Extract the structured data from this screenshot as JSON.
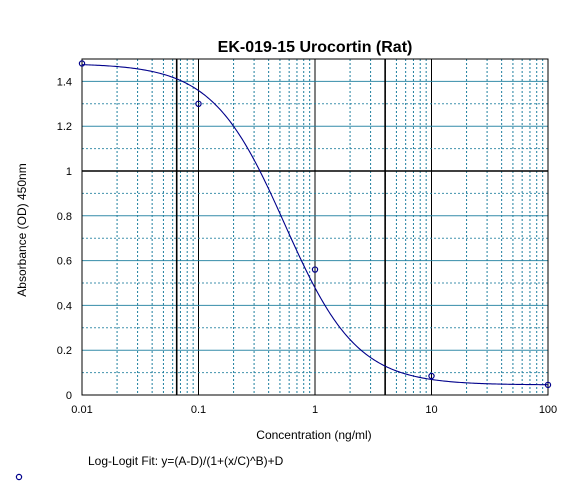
{
  "chart_data": {
    "type": "scatter",
    "title": "EK-019-15 Urocortin (Rat)",
    "xlabel": "Concentration (ng/ml)",
    "ylabel": "Absorbance (OD) 450nm",
    "x_scale": "log",
    "xlim": [
      0.01,
      100
    ],
    "ylim": [
      0,
      1.5
    ],
    "x_ticks": [
      "0.01",
      "0.1",
      "1",
      "10",
      "100"
    ],
    "y_ticks": [
      "0",
      "0.2",
      "0.4",
      "0.6",
      "0.8",
      "1",
      "1.2",
      "1.4"
    ],
    "grid": true,
    "series": [
      {
        "type": "scatter",
        "x": [
          0.01,
          0.1,
          1,
          10,
          100
        ],
        "y": [
          1.48,
          1.3,
          0.56,
          0.085,
          0.045
        ]
      }
    ],
    "fit": {
      "model": "log-logit",
      "label": "Log-Logit Fit: y=(A-D)/(1+(x/C)^B)+D",
      "A": 1.48,
      "B": 1.4,
      "C": 0.55,
      "D": 0.045
    },
    "reference_lines": {
      "y": 1.0,
      "x": [
        0.065,
        4
      ]
    },
    "colors": {
      "points": "#00008b",
      "curve": "#00008b",
      "major_grid": "#000000",
      "minor_grid": "#1f7f9f",
      "reference": "#000000"
    }
  }
}
